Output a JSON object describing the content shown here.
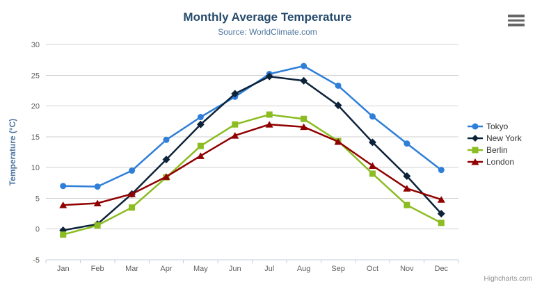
{
  "chart_data": {
    "type": "line",
    "title": "Monthly Average Temperature",
    "subtitle": "Source: WorldClimate.com",
    "xlabel": "",
    "ylabel": "Temperature (°C)",
    "ylim": [
      -5,
      30
    ],
    "ytick_step": 5,
    "grid": true,
    "legend_position": "right",
    "categories": [
      "Jan",
      "Feb",
      "Mar",
      "Apr",
      "May",
      "Jun",
      "Jul",
      "Aug",
      "Sep",
      "Oct",
      "Nov",
      "Dec"
    ],
    "series": [
      {
        "name": "Tokyo",
        "color": "#2f7ed8",
        "marker": "circle",
        "values": [
          7.0,
          6.9,
          9.5,
          14.5,
          18.2,
          21.5,
          25.2,
          26.5,
          23.3,
          18.3,
          13.9,
          9.6
        ]
      },
      {
        "name": "New York",
        "color": "#0d233a",
        "marker": "diamond",
        "values": [
          -0.2,
          0.8,
          5.7,
          11.3,
          17.0,
          22.0,
          24.8,
          24.1,
          20.1,
          14.1,
          8.6,
          2.5
        ]
      },
      {
        "name": "Berlin",
        "color": "#8bbc21",
        "marker": "square",
        "values": [
          -0.9,
          0.6,
          3.5,
          8.4,
          13.5,
          17.0,
          18.6,
          17.9,
          14.3,
          9.0,
          3.9,
          1.0
        ]
      },
      {
        "name": "London",
        "color": "#910000",
        "marker": "triangle",
        "values": [
          3.9,
          4.2,
          5.7,
          8.5,
          11.9,
          15.2,
          17.0,
          16.6,
          14.2,
          10.3,
          6.6,
          4.8
        ]
      }
    ],
    "colors": {
      "title": "#274b6d",
      "subtitle": "#4d759e",
      "axis_title": "#4d759e",
      "tick_label": "#606060",
      "gridline": "#d0d0d0",
      "axis_line": "#c0d0e0",
      "legend_text": "#333333"
    }
  },
  "export_menu": {
    "icon": "hamburger-menu-icon"
  },
  "credits": {
    "label": "Highcharts.com"
  }
}
